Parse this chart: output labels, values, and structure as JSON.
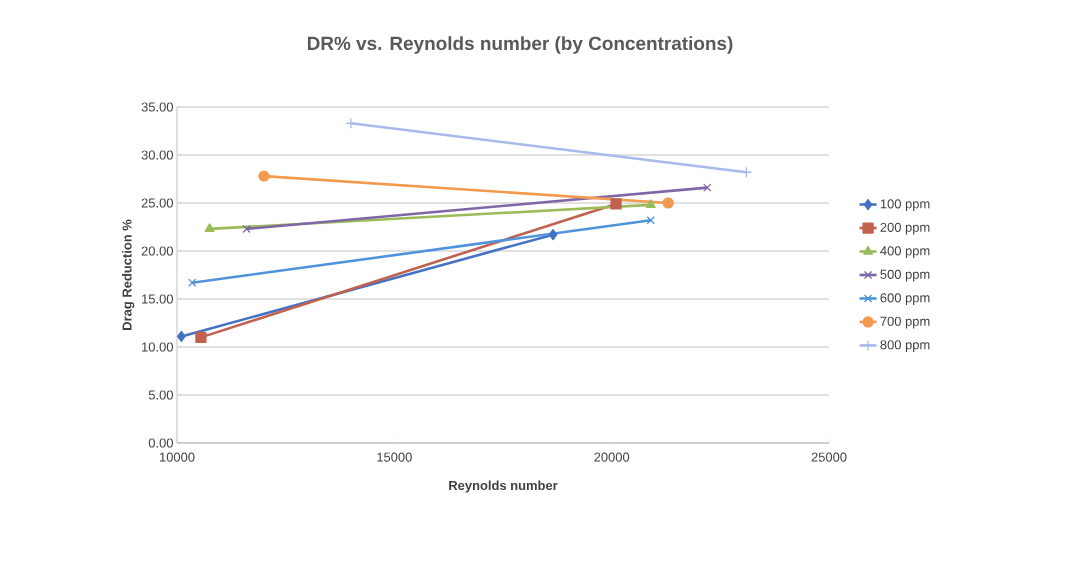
{
  "chart_data": {
    "type": "line",
    "title": "DR% vs. Reynolds number (by Concentrations)",
    "xlabel": "Reynolds number",
    "ylabel": "Drag Reduction %",
    "xlim": [
      10000,
      25000
    ],
    "xticks": [
      10000,
      15000,
      20000,
      25000
    ],
    "ylim": [
      0,
      35
    ],
    "yticks": [
      {
        "value": 0,
        "label": "0.00"
      },
      {
        "value": 5,
        "label": "5.00"
      },
      {
        "value": 10,
        "label": "10.00"
      },
      {
        "value": 15,
        "label": "15.00"
      },
      {
        "value": 20,
        "label": "20.00"
      },
      {
        "value": 25,
        "label": "25.00"
      },
      {
        "value": 30,
        "label": "30.00"
      },
      {
        "value": 35,
        "label": "35.00"
      }
    ],
    "grid": "y",
    "legend": "right",
    "line_style": "solid",
    "series": [
      {
        "name": "100 ppm",
        "color": "#4472c4",
        "marker": "diamond",
        "x": [
          10100,
          18650
        ],
        "values": [
          11.1,
          21.7
        ]
      },
      {
        "name": "200 ppm",
        "color": "#c0624f",
        "marker": "square",
        "x": [
          10550,
          20100
        ],
        "values": [
          11.0,
          24.9
        ]
      },
      {
        "name": "400 ppm",
        "color": "#9bbb59",
        "marker": "triangle",
        "x": [
          10750,
          20900
        ],
        "values": [
          22.3,
          24.8
        ]
      },
      {
        "name": "500 ppm",
        "color": "#7f67a6",
        "marker": "cross",
        "x": [
          11600,
          22200
        ],
        "values": [
          22.3,
          26.6
        ]
      },
      {
        "name": "600 ppm",
        "color": "#4f93dd",
        "marker": "cross",
        "x": [
          10350,
          20900
        ],
        "values": [
          16.7,
          23.2
        ]
      },
      {
        "name": "700 ppm",
        "color": "#f39a4f",
        "marker": "circle",
        "x": [
          12000,
          21300
        ],
        "values": [
          27.8,
          25.0
        ]
      },
      {
        "name": "800 ppm",
        "color": "#a9b9ec",
        "marker": "plus",
        "x": [
          14000,
          23100
        ],
        "values": [
          33.3,
          28.2
        ]
      }
    ]
  }
}
